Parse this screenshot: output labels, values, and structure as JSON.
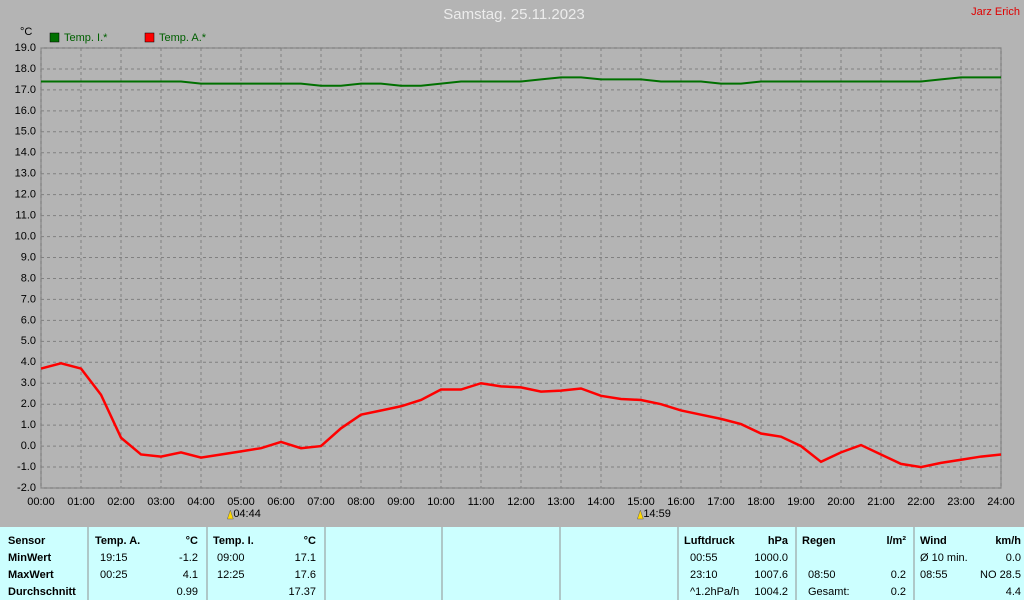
{
  "chart_data": {
    "type": "line",
    "title": "Samstag. 25.11.2023",
    "author": "Jarz Erich",
    "y_label": "°C",
    "x": [
      0,
      0.5,
      1,
      1.5,
      2,
      2.5,
      3,
      3.5,
      4,
      4.5,
      5,
      5.5,
      6,
      6.5,
      7,
      7.5,
      8,
      8.5,
      9,
      9.5,
      10,
      10.5,
      11,
      11.5,
      12,
      12.5,
      13,
      13.5,
      14,
      14.5,
      15,
      15.5,
      16,
      16.5,
      17,
      17.5,
      18,
      18.5,
      19,
      19.5,
      20,
      20.5,
      21,
      21.5,
      22,
      22.5,
      23,
      23.5,
      24
    ],
    "series": [
      {
        "name": "Temp. I.*",
        "color": "#007000",
        "values": [
          17.4,
          17.4,
          17.4,
          17.4,
          17.4,
          17.4,
          17.4,
          17.4,
          17.3,
          17.3,
          17.3,
          17.3,
          17.3,
          17.3,
          17.2,
          17.2,
          17.3,
          17.3,
          17.2,
          17.2,
          17.3,
          17.4,
          17.4,
          17.4,
          17.4,
          17.5,
          17.6,
          17.6,
          17.5,
          17.5,
          17.5,
          17.4,
          17.4,
          17.4,
          17.3,
          17.3,
          17.4,
          17.4,
          17.4,
          17.4,
          17.4,
          17.4,
          17.4,
          17.4,
          17.4,
          17.5,
          17.6,
          17.6,
          17.6
        ]
      },
      {
        "name": "Temp. A.*",
        "color": "#ff0000",
        "values": [
          3.7,
          3.95,
          3.7,
          2.45,
          0.4,
          -0.4,
          -0.5,
          -0.3,
          -0.55,
          -0.4,
          -0.25,
          -0.1,
          0.2,
          -0.1,
          0.0,
          0.85,
          1.5,
          1.7,
          1.9,
          2.2,
          2.7,
          2.7,
          3.0,
          2.85,
          2.8,
          2.6,
          2.65,
          2.75,
          2.4,
          2.25,
          2.2,
          2.0,
          1.7,
          1.5,
          1.3,
          1.05,
          0.6,
          0.45,
          0.0,
          -0.75,
          -0.3,
          0.05,
          -0.4,
          -0.85,
          -1.0,
          -0.8,
          -0.65,
          -0.5,
          -0.4
        ]
      }
    ],
    "xlim": [
      0,
      24
    ],
    "xticks": [
      {
        "value": 0,
        "label": "00:00"
      },
      {
        "value": 1,
        "label": "01:00"
      },
      {
        "value": 2,
        "label": "02:00"
      },
      {
        "value": 3,
        "label": "03:00"
      },
      {
        "value": 4,
        "label": "04:00"
      },
      {
        "value": 5,
        "label": "05:00"
      },
      {
        "value": 6,
        "label": "06:00"
      },
      {
        "value": 7,
        "label": "07:00"
      },
      {
        "value": 8,
        "label": "08:00"
      },
      {
        "value": 9,
        "label": "09:00"
      },
      {
        "value": 10,
        "label": "10:00"
      },
      {
        "value": 11,
        "label": "11:00"
      },
      {
        "value": 12,
        "label": "12:00"
      },
      {
        "value": 13,
        "label": "13:00"
      },
      {
        "value": 14,
        "label": "14:00"
      },
      {
        "value": 15,
        "label": "15:00"
      },
      {
        "value": 16,
        "label": "16:00"
      },
      {
        "value": 17,
        "label": "17:00"
      },
      {
        "value": 18,
        "label": "18:00"
      },
      {
        "value": 19,
        "label": "19:00"
      },
      {
        "value": 20,
        "label": "20:00"
      },
      {
        "value": 21,
        "label": "21:00"
      },
      {
        "value": 22,
        "label": "22:00"
      },
      {
        "value": 23,
        "label": "23:00"
      },
      {
        "value": 24,
        "label": "24:00"
      }
    ],
    "ylim": [
      -2,
      19
    ],
    "yticks": [
      {
        "value": -2,
        "label": "-2.0"
      },
      {
        "value": -1,
        "label": "-1.0"
      },
      {
        "value": 0,
        "label": "0.0"
      },
      {
        "value": 1,
        "label": "1.0"
      },
      {
        "value": 2,
        "label": "2.0"
      },
      {
        "value": 3,
        "label": "3.0"
      },
      {
        "value": 4,
        "label": "4.0"
      },
      {
        "value": 5,
        "label": "5.0"
      },
      {
        "value": 6,
        "label": "6.0"
      },
      {
        "value": 7,
        "label": "7.0"
      },
      {
        "value": 8,
        "label": "8.0"
      },
      {
        "value": 9,
        "label": "9.0"
      },
      {
        "value": 10,
        "label": "10.0"
      },
      {
        "value": 11,
        "label": "11.0"
      },
      {
        "value": 12,
        "label": "12.0"
      },
      {
        "value": 13,
        "label": "13.0"
      },
      {
        "value": 14,
        "label": "14.0"
      },
      {
        "value": 15,
        "label": "15.0"
      },
      {
        "value": 16,
        "label": "16.0"
      },
      {
        "value": 17,
        "label": "17.0"
      },
      {
        "value": 18,
        "label": "18.0"
      },
      {
        "value": 19,
        "label": "19.0"
      }
    ],
    "grid": true,
    "annotations": [
      {
        "x": 4.733,
        "label": "04:44"
      },
      {
        "x": 14.983,
        "label": "14:59"
      }
    ]
  },
  "table": {
    "rows": [
      [
        "Sensor",
        "Temp. A.",
        "°C",
        "Temp. I.",
        "°C",
        "Luftdruck",
        "hPa",
        "Regen",
        "l/m²",
        "Wind",
        "km/h"
      ],
      [
        "MinWert",
        "19:15",
        "-1.2",
        "09:00",
        "17.1",
        "00:55",
        "1000.0",
        null,
        null,
        "Ø 10 min.",
        "0.0"
      ],
      [
        "MaxWert",
        "00:25",
        "4.1",
        "12:25",
        "17.6",
        "23:10",
        "1007.6",
        "08:50",
        "0.2",
        "08:55",
        "NO 28.5"
      ],
      [
        "Durchschnitt",
        null,
        "0.99",
        null,
        "17.37",
        "^1.2hPa/h",
        "1004.2",
        "Gesamt:",
        "0.2",
        null,
        "4.4"
      ]
    ]
  }
}
